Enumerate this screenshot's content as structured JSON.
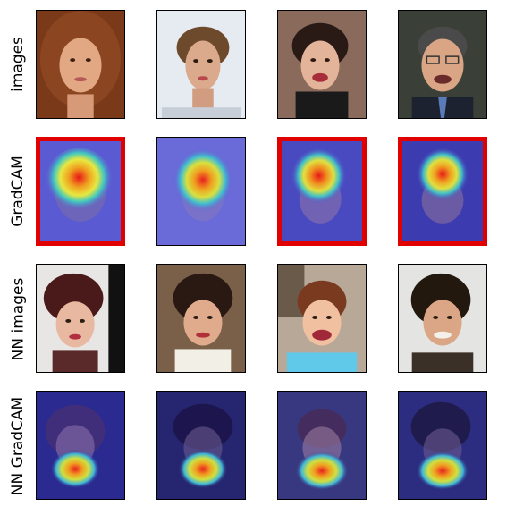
{
  "figure": {
    "row_labels": [
      "images",
      "GradCAM",
      "NN images",
      "NN GradCAM"
    ],
    "highlighted_gradcam_columns": [
      1,
      3,
      4
    ]
  },
  "colors": {
    "highlight": "#e00000",
    "gradcam_overlay": "#5a5ad2",
    "nn_gradcam_overlay": "#28287a"
  }
}
